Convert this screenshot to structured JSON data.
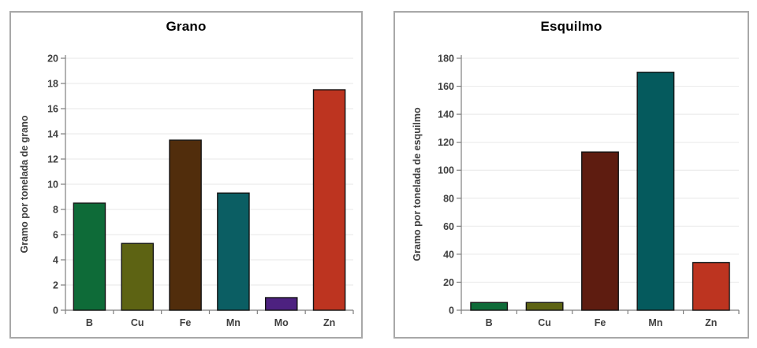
{
  "window": {
    "background": "#ffffff"
  },
  "theme": {
    "panel_border": "#a8a8a8",
    "grid_color": "#ececec",
    "axis_color": "#7f7f7f",
    "tick_label_color": "#404040",
    "bar_outline": "#141414",
    "title_color": "#000000"
  },
  "chart_data": [
    {
      "type": "bar",
      "title": "Grano",
      "ylabel": "Gramo por tonelada de grano",
      "xlabel": "",
      "categories": [
        "B",
        "Cu",
        "Fe",
        "Mn",
        "Mo",
        "Zn"
      ],
      "values": [
        8.5,
        5.3,
        13.5,
        9.3,
        1.0,
        17.5
      ],
      "ylim": [
        0,
        20
      ],
      "ytick_step": 2,
      "grid": true,
      "legend": false,
      "bar_colors": [
        "#0e6b38",
        "#5d6313",
        "#512d0c",
        "#0b5e63",
        "#4d2180",
        "#bd3420"
      ]
    },
    {
      "type": "bar",
      "title": "Esquilmo",
      "ylabel": "Gramo por tonelada de esquilmo",
      "xlabel": "",
      "categories": [
        "B",
        "Cu",
        "Fe",
        "Mn",
        "Zn"
      ],
      "values": [
        5.5,
        5.5,
        113,
        170,
        34
      ],
      "ylim": [
        0,
        180
      ],
      "ytick_step": 20,
      "grid": true,
      "legend": false,
      "bar_colors": [
        "#0e6b38",
        "#5d6313",
        "#5e1c10",
        "#055a5d",
        "#bd3420"
      ]
    }
  ]
}
